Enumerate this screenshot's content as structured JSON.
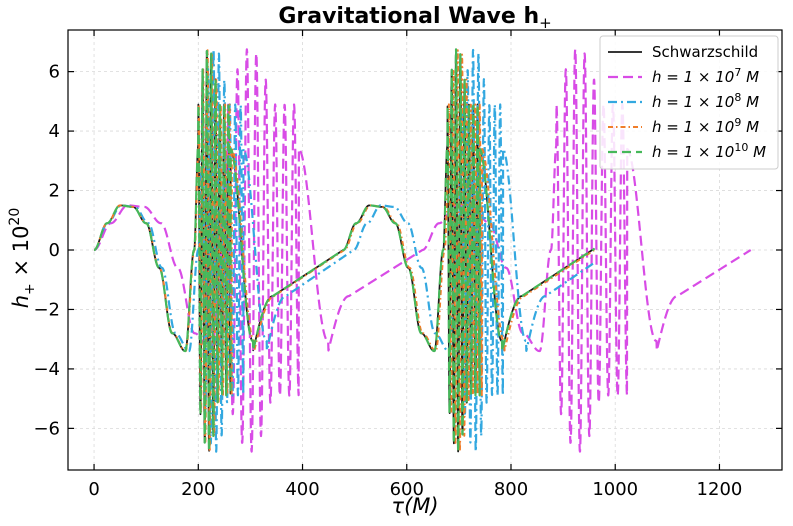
{
  "chart_data": {
    "type": "line",
    "title": "Gravitational Wave h",
    "title_sub": "+",
    "xlabel": "τ(M)",
    "ylabel": "h",
    "ylabel_sub": "+",
    "ylabel_mult": " × 10",
    "ylabel_exp": "20",
    "xlim": [
      -50,
      1320
    ],
    "ylim": [
      -7.4,
      7.4
    ],
    "xticks": [
      0,
      200,
      400,
      600,
      800,
      1000,
      1200
    ],
    "yticks": [
      -6,
      -4,
      -2,
      0,
      2,
      4,
      6
    ],
    "xtick_labels": [
      "0",
      "200",
      "400",
      "600",
      "800",
      "1000",
      "1200"
    ],
    "ytick_labels": [
      "−6",
      "−4",
      "−2",
      "0",
      "2",
      "4",
      "6"
    ],
    "grid": true,
    "legend_position": "top-right",
    "waveform": {
      "description_points": "one orbit period template, amplitude in units of 1e-20",
      "template_x": [
        0,
        0.0625,
        0.125,
        0.1875,
        0.25,
        0.3125,
        0.375,
        0.4375,
        0.48,
        0.5
      ],
      "template_y": [
        0,
        0.9,
        1.5,
        1.45,
        0.9,
        -0.6,
        -2.8,
        -3.4,
        0,
        3.5
      ],
      "burst_amplitude": 6.8
    },
    "series": [
      {
        "name": "Schwarzschild",
        "label_main": "Schwarzschild",
        "label_exp": "",
        "label_tail": "",
        "color": "#1a1a1a",
        "dash": "",
        "period": 478,
        "burst_start": 200,
        "burst_end": 262,
        "t_end": 960,
        "width": 1.8
      },
      {
        "name": "h = 1 × 10^7 M",
        "label_main": "h = 1 × 10",
        "label_exp": "7",
        "label_tail": " M",
        "color": "#d84ce6",
        "dash": "10,5",
        "period": 630,
        "burst_start": 195,
        "burst_end": 298,
        "t_end": 1260,
        "width": 2.2
      },
      {
        "name": "h = 1 × 10^8 M",
        "label_main": "h = 1 × 10",
        "label_exp": "8",
        "label_tail": " M",
        "color": "#33a8e0",
        "dash": "9,4,2,4",
        "period": 498,
        "burst_start": 200,
        "burst_end": 275,
        "t_end": 958,
        "width": 2.2
      },
      {
        "name": "h = 1 × 10^9 M",
        "label_main": "h = 1 × 10",
        "label_exp": "9",
        "label_tail": " M",
        "color": "#f07d2a",
        "dash": "5,3,1.5,3",
        "period": 480,
        "burst_start": 200,
        "burst_end": 263,
        "t_end": 960,
        "width": 2.0
      },
      {
        "name": "h = 1 × 10^10 M",
        "label_main": "h = 1 × 10",
        "label_exp": "10",
        "label_tail": " M",
        "color": "#46b85a",
        "dash": "9,5",
        "period": 478,
        "burst_start": 200,
        "burst_end": 262,
        "t_end": 960,
        "width": 2.2
      }
    ]
  }
}
